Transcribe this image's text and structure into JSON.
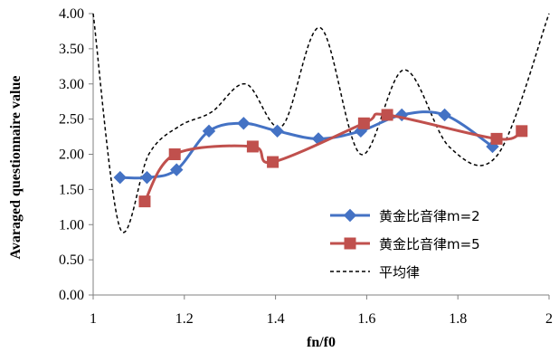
{
  "chart_data": {
    "type": "line",
    "title": "",
    "xlabel": "fn/f0",
    "ylabel": "Avaraged questionnaire value",
    "xlim": [
      1,
      2
    ],
    "ylim": [
      0,
      4
    ],
    "x_ticks": [
      "1",
      "1.2",
      "1.4",
      "1.6",
      "1.8",
      "2"
    ],
    "y_ticks": [
      "0.00",
      "0.50",
      "1.00",
      "1.50",
      "2.00",
      "2.50",
      "3.00",
      "3.50",
      "4.00"
    ],
    "grid": false,
    "legend_position": "bottom-right",
    "series": [
      {
        "name": "黄金比音律m=2",
        "color": "#4472C4",
        "marker": "diamond",
        "line_style": "solid",
        "x": [
          1.059,
          1.118,
          1.183,
          1.254,
          1.33,
          1.404,
          1.494,
          1.587,
          1.677,
          1.771,
          1.876
        ],
        "y": [
          1.67,
          1.67,
          1.78,
          2.33,
          2.44,
          2.33,
          2.22,
          2.33,
          2.56,
          2.56,
          2.11
        ]
      },
      {
        "name": "黄金比音律m=5",
        "color": "#C0504D",
        "marker": "square",
        "line_style": "solid",
        "x": [
          1.113,
          1.179,
          1.35,
          1.394,
          1.594,
          1.645,
          1.885,
          1.94
        ],
        "y": [
          1.33,
          2.0,
          2.11,
          1.89,
          2.44,
          2.56,
          2.22,
          2.33
        ]
      },
      {
        "name": "平均律",
        "color": "#000000",
        "marker": "none",
        "line_style": "dashed",
        "x": [
          1.0,
          1.059,
          1.122,
          1.189,
          1.26,
          1.335,
          1.414,
          1.498,
          1.587,
          1.682,
          1.782,
          1.888,
          2.0
        ],
        "y": [
          4.0,
          0.95,
          2.0,
          2.4,
          2.6,
          3.0,
          2.4,
          3.8,
          2.0,
          3.2,
          2.1,
          2.0,
          4.0
        ]
      }
    ]
  }
}
